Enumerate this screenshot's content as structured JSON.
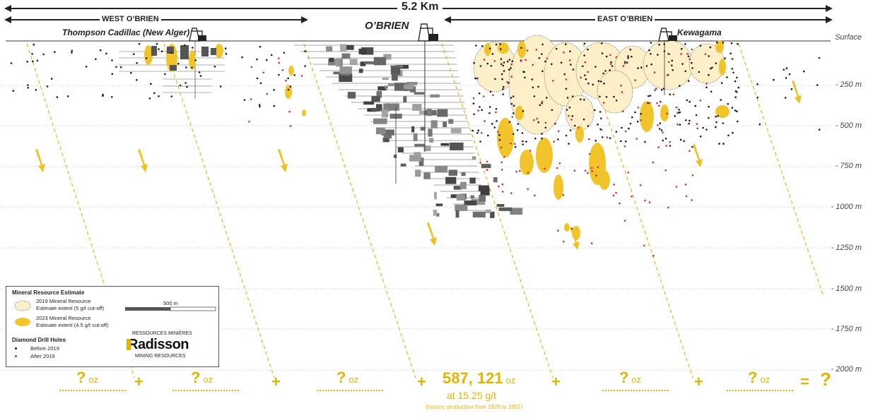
{
  "header": {
    "total_length": "5.2 Km",
    "west_label": "WEST O’BRIEN",
    "east_label": "EAST O’BRIEN"
  },
  "mines": {
    "thompson": "Thompson Cadillac (New Alger)",
    "obrien": "O’BRIEN",
    "kewagama": "Kewagama"
  },
  "depth_labels": [
    "Surface",
    "- 250 m",
    "- 500 m",
    "- 750 m",
    "- 1000 m",
    "- 1250 m",
    "- 1500 m",
    "- 1750 m",
    "- 2000 m"
  ],
  "legend": {
    "title": "Mineral Resource Estimate",
    "item_2019_line1": "2019 Mineral Resource",
    "item_2019_line2": "Estimate extent (5  g/t cut-off)",
    "item_2023_line1": "2023 Mineral Resource",
    "item_2023_line2": "Estimate extent (4.5  g/t cut-off)",
    "scale": "500 m",
    "drill_title": "Diamond Drill Holes",
    "before": "Before 2019",
    "after": "After 2019",
    "logo_top": "RESSOURCES MINIÈRES",
    "logo_name": "Radisson",
    "logo_bottom": "MINING RESOURCES"
  },
  "totals": {
    "unknown_mark": "?",
    "unit": "oz",
    "plus": "+",
    "equals": "=",
    "known_value": "587, 121",
    "grade": "at 15.25 g/t",
    "production_note": "(historic production from 1926 to 1957)"
  },
  "colors": {
    "gold": "#f2c42c",
    "resource_2019": "#fdf0c8",
    "drill_before": "#1a1a1a",
    "drill_after": "#d42a2a"
  }
}
